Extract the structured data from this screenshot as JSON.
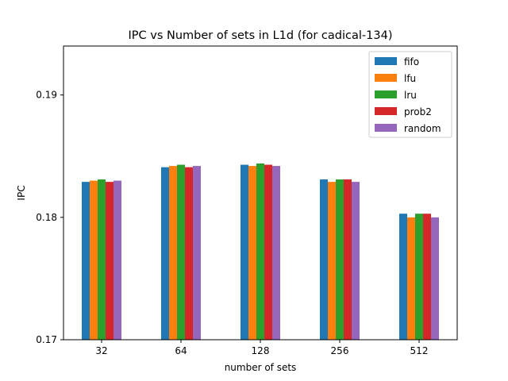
{
  "chart_data": {
    "type": "bar",
    "title": "IPC vs Number of sets in L1d (for cadical-134)",
    "xlabel": "number of sets",
    "ylabel": "IPC",
    "ylim": [
      0.17,
      0.194
    ],
    "yticks": [
      0.17,
      0.18,
      0.19
    ],
    "ytick_labels": [
      "0.17",
      "0.18",
      "0.19"
    ],
    "categories": [
      "32",
      "64",
      "128",
      "256",
      "512"
    ],
    "legend_position": "top-right",
    "series": [
      {
        "name": "fifo",
        "color": "#1f77b4",
        "values": [
          0.1829,
          0.1841,
          0.1843,
          0.1831,
          0.1803
        ]
      },
      {
        "name": "lfu",
        "color": "#ff7f0e",
        "values": [
          0.183,
          0.1842,
          0.1842,
          0.1829,
          0.18
        ]
      },
      {
        "name": "lru",
        "color": "#2ca02c",
        "values": [
          0.1831,
          0.1843,
          0.1844,
          0.1831,
          0.1803
        ]
      },
      {
        "name": "prob2",
        "color": "#d62728",
        "values": [
          0.1829,
          0.1841,
          0.1843,
          0.1831,
          0.1803
        ]
      },
      {
        "name": "random",
        "color": "#9467bd",
        "values": [
          0.183,
          0.1842,
          0.1842,
          0.1829,
          0.18
        ]
      }
    ]
  }
}
